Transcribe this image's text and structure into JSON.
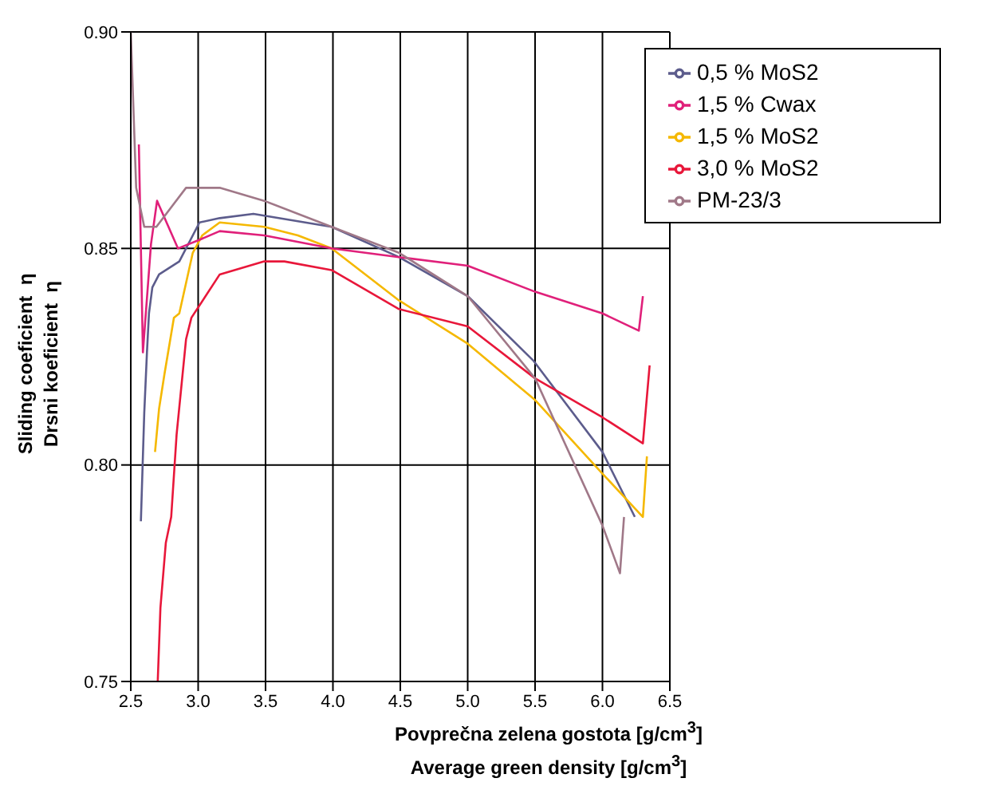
{
  "chart_data": {
    "type": "line",
    "xlabel": "Povprečna zelena gostota [g/cm$^{3}$]\nAverage green density [g/cm$^{3}$]",
    "ylabel": "Sliding coeficient  η\nDrsni koeficient  η",
    "xlim": [
      2.5,
      6.5
    ],
    "xticks": [
      2.5,
      {
        "value": 3,
        "label": "3.0"
      },
      3.5,
      {
        "value": 4,
        "label": "4.0"
      },
      4.5,
      {
        "value": 5,
        "label": "5.0"
      },
      5.5,
      {
        "value": 6,
        "label": "6.0"
      },
      6.5
    ],
    "ylim": [
      0.75,
      0.9
    ],
    "yticks": [
      0.75,
      {
        "value": 0.8,
        "label": "0.80"
      },
      0.85,
      {
        "value": 0.9,
        "label": "0.90"
      }
    ],
    "grid": true,
    "legend": "top right",
    "marker": "none",
    "line_style": "solid",
    "series": [
      {
        "name": "0,5 % MoS2",
        "color": "#5c5c8c",
        "x": [
          2.575,
          2.6,
          2.62,
          2.635,
          2.66,
          2.71,
          2.86,
          3.01,
          3.16,
          3.41,
          3.99,
          4.49,
          5.0,
          5.49,
          6.0,
          6.24
        ],
        "values": [
          0.787,
          0.812,
          0.826,
          0.835,
          0.841,
          0.844,
          0.847,
          0.856,
          0.857,
          0.858,
          0.855,
          0.848,
          0.839,
          0.824,
          0.803,
          0.788
        ]
      },
      {
        "name": "1,5 % MoS2",
        "color": "#f5b800",
        "x": [
          2.68,
          2.71,
          2.75,
          2.82,
          2.86,
          2.96,
          3.03,
          3.16,
          3.49,
          3.74,
          3.99,
          4.49,
          5.0,
          5.5,
          6.0,
          6.3,
          6.33
        ],
        "values": [
          0.803,
          0.813,
          0.821,
          0.834,
          0.835,
          0.849,
          0.853,
          0.856,
          0.855,
          0.853,
          0.85,
          0.838,
          0.828,
          0.815,
          0.798,
          0.788,
          0.802
        ]
      },
      {
        "name": "3,0 % MoS2",
        "color": "#e8173a",
        "x": [
          2.7,
          2.72,
          2.76,
          2.8,
          2.84,
          2.91,
          2.95,
          3.16,
          3.49,
          3.64,
          3.99,
          4.49,
          5.0,
          5.5,
          6.0,
          6.3,
          6.35
        ],
        "values": [
          0.75,
          0.767,
          0.782,
          0.788,
          0.807,
          0.829,
          0.834,
          0.844,
          0.847,
          0.847,
          0.845,
          0.836,
          0.832,
          0.82,
          0.811,
          0.805,
          0.823
        ]
      },
      {
        "name": "1,5 % Cwax",
        "color": "#e0207a",
        "x": [
          2.56,
          2.59,
          2.65,
          2.695,
          2.85,
          3.01,
          3.16,
          3.49,
          3.99,
          4.49,
          5.0,
          5.5,
          6.0,
          6.27,
          6.3
        ],
        "values": [
          0.874,
          0.826,
          0.851,
          0.861,
          0.85,
          0.852,
          0.854,
          0.853,
          0.85,
          0.848,
          0.846,
          0.84,
          0.835,
          0.831,
          0.839
        ]
      },
      {
        "name": "PM-23/3",
        "color": "#a07888",
        "x": [
          2.5,
          2.54,
          2.6,
          2.69,
          2.91,
          3.16,
          3.49,
          3.99,
          4.49,
          5.0,
          5.5,
          6.0,
          6.13,
          6.16
        ],
        "values": [
          0.9,
          0.864,
          0.855,
          0.855,
          0.864,
          0.864,
          0.861,
          0.855,
          0.849,
          0.839,
          0.82,
          0.786,
          0.775,
          0.788
        ]
      }
    ]
  }
}
